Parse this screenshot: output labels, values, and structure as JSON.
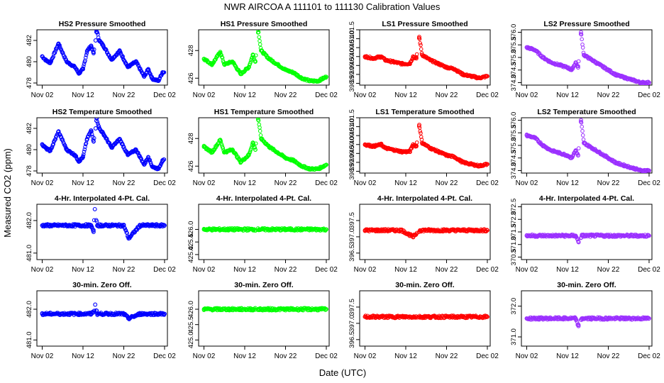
{
  "page_title": "NWR    AIRCOA A    111101 to 111130    Calibration Values",
  "ylabel": "Measured CO2 (ppm)",
  "xlabel": "Date (UTC)",
  "colors": {
    "HS2": "#0000ff",
    "HS1": "#00ff00",
    "LS1": "#ff0000",
    "LS2": "#9b30ff"
  },
  "x_ticks": [
    "Nov 02",
    "Nov 12",
    "Nov 22",
    "Dec 02"
  ],
  "chart_data": [
    {
      "type": "scatter",
      "title": "HS2 Pressure Smoothed",
      "series": "HS2",
      "ylim": [
        477.8,
        483.0
      ],
      "yticks": [
        "478",
        "480",
        "482"
      ],
      "values": [
        [
          0.0,
          480.5
        ],
        [
          1.0,
          480.1
        ],
        [
          2.0,
          479.9
        ],
        [
          4.0,
          481.7
        ],
        [
          6.0,
          480.0
        ],
        [
          8.0,
          479.5
        ],
        [
          9.0,
          478.9
        ],
        [
          10.0,
          479.3
        ],
        [
          11.0,
          481.0
        ],
        [
          12.0,
          481.5
        ],
        [
          12.6,
          480.8
        ],
        [
          13.1,
          482.0
        ],
        [
          13.3,
          483.0
        ],
        [
          14.0,
          482.0
        ],
        [
          15.0,
          481.5
        ],
        [
          17.0,
          480.2
        ],
        [
          19.0,
          481.0
        ],
        [
          21.0,
          479.5
        ],
        [
          23.0,
          480.0
        ],
        [
          25.0,
          478.6
        ],
        [
          26.0,
          479.3
        ],
        [
          27.0,
          478.4
        ],
        [
          28.5,
          478.2
        ],
        [
          29.5,
          479.0
        ]
      ]
    },
    {
      "type": "scatter",
      "title": "HS1 Pressure Smoothed",
      "series": "HS1",
      "ylim": [
        425.5,
        429.5
      ],
      "yticks": [
        "426",
        "428"
      ],
      "values": [
        [
          0.0,
          427.4
        ],
        [
          2.0,
          427.0
        ],
        [
          4.0,
          427.9
        ],
        [
          5.0,
          427.0
        ],
        [
          7.0,
          427.2
        ],
        [
          9.0,
          426.3
        ],
        [
          11.0,
          426.8
        ],
        [
          12.0,
          427.7
        ],
        [
          12.6,
          427.2
        ],
        [
          13.3,
          429.5
        ],
        [
          14.0,
          428.0
        ],
        [
          16.0,
          427.4
        ],
        [
          18.0,
          427.0
        ],
        [
          20.0,
          426.6
        ],
        [
          22.0,
          426.4
        ],
        [
          24.0,
          426.0
        ],
        [
          26.0,
          425.8
        ],
        [
          28.0,
          425.8
        ],
        [
          30.0,
          426.1
        ]
      ]
    },
    {
      "type": "scatter",
      "title": "LS1 Pressure Smoothed",
      "series": "LS1",
      "ylim": [
        398.4,
        401.5
      ],
      "yticks": [
        "398.5",
        "399.0",
        "399.5",
        "400.0",
        "400.5",
        "401.0",
        "401.5"
      ],
      "values": [
        [
          0.0,
          400.0
        ],
        [
          2.0,
          399.9
        ],
        [
          4.0,
          400.0
        ],
        [
          5.0,
          399.8
        ],
        [
          7.0,
          399.7
        ],
        [
          9.0,
          399.6
        ],
        [
          11.0,
          399.6
        ],
        [
          11.8,
          400.0
        ],
        [
          12.6,
          399.9
        ],
        [
          13.3,
          401.1
        ],
        [
          14.0,
          400.1
        ],
        [
          16.0,
          399.8
        ],
        [
          18.0,
          399.6
        ],
        [
          20.0,
          399.4
        ],
        [
          22.0,
          399.3
        ],
        [
          24.0,
          399.0
        ],
        [
          26.0,
          398.9
        ],
        [
          28.0,
          398.8
        ],
        [
          30.0,
          398.9
        ]
      ]
    },
    {
      "type": "scatter",
      "title": "LS2 Pressure Smoothed",
      "series": "LS2",
      "ylim": [
        373.9,
        376.1
      ],
      "yticks": [
        "374.0",
        "374.5",
        "375.0",
        "375.5",
        "376.0"
      ],
      "values": [
        [
          0.0,
          375.4
        ],
        [
          2.0,
          375.3
        ],
        [
          4.0,
          375.0
        ],
        [
          6.0,
          374.8
        ],
        [
          8.0,
          374.7
        ],
        [
          10.0,
          374.6
        ],
        [
          11.0,
          374.5
        ],
        [
          12.0,
          374.8
        ],
        [
          12.6,
          374.6
        ],
        [
          13.3,
          376.0
        ],
        [
          14.0,
          375.1
        ],
        [
          16.0,
          374.9
        ],
        [
          18.0,
          374.7
        ],
        [
          20.0,
          374.5
        ],
        [
          22.0,
          374.3
        ],
        [
          24.0,
          374.2
        ],
        [
          26.0,
          374.1
        ],
        [
          28.0,
          374.0
        ],
        [
          30.0,
          374.0
        ]
      ]
    },
    {
      "type": "scatter",
      "title": "HS2 Temperature Smoothed",
      "series": "HS2",
      "ylim": [
        477.8,
        483.0
      ],
      "yticks": [
        "478",
        "480",
        "482"
      ],
      "values": [
        [
          0.0,
          480.5
        ],
        [
          1.0,
          480.1
        ],
        [
          2.0,
          479.9
        ],
        [
          4.0,
          481.7
        ],
        [
          6.0,
          480.0
        ],
        [
          8.0,
          479.5
        ],
        [
          9.0,
          478.9
        ],
        [
          10.0,
          479.3
        ],
        [
          11.0,
          481.0
        ],
        [
          12.0,
          481.8
        ],
        [
          12.6,
          480.8
        ],
        [
          13.1,
          482.0
        ],
        [
          13.3,
          483.0
        ],
        [
          14.0,
          482.0
        ],
        [
          15.0,
          481.5
        ],
        [
          17.0,
          480.2
        ],
        [
          19.0,
          481.0
        ],
        [
          21.0,
          479.5
        ],
        [
          23.0,
          480.0
        ],
        [
          25.0,
          478.6
        ],
        [
          26.0,
          479.3
        ],
        [
          27.0,
          478.4
        ],
        [
          28.5,
          478.2
        ],
        [
          29.5,
          479.0
        ]
      ]
    },
    {
      "type": "scatter",
      "title": "HS1 Temperature Smoothed",
      "series": "HS1",
      "ylim": [
        425.5,
        429.5
      ],
      "yticks": [
        "426",
        "428"
      ],
      "values": [
        [
          0.0,
          427.4
        ],
        [
          2.0,
          427.0
        ],
        [
          4.0,
          427.9
        ],
        [
          5.0,
          427.0
        ],
        [
          7.0,
          427.2
        ],
        [
          9.0,
          426.3
        ],
        [
          11.0,
          426.8
        ],
        [
          12.0,
          427.7
        ],
        [
          12.6,
          427.2
        ],
        [
          13.3,
          429.5
        ],
        [
          14.0,
          428.0
        ],
        [
          16.0,
          427.4
        ],
        [
          18.0,
          427.0
        ],
        [
          20.0,
          426.6
        ],
        [
          22.0,
          426.4
        ],
        [
          24.0,
          426.0
        ],
        [
          26.0,
          425.8
        ],
        [
          28.0,
          425.8
        ],
        [
          30.0,
          426.1
        ]
      ]
    },
    {
      "type": "scatter",
      "title": "LS1 Temperature Smoothed",
      "series": "LS1",
      "ylim": [
        398.4,
        401.5
      ],
      "yticks": [
        "398.5",
        "399.0",
        "399.5",
        "400.0",
        "400.5",
        "401.0",
        "401.5"
      ],
      "values": [
        [
          0.0,
          400.0
        ],
        [
          2.0,
          399.9
        ],
        [
          4.0,
          400.0
        ],
        [
          5.0,
          399.8
        ],
        [
          7.0,
          399.7
        ],
        [
          9.0,
          399.6
        ],
        [
          11.0,
          399.6
        ],
        [
          11.8,
          400.0
        ],
        [
          12.6,
          399.9
        ],
        [
          13.3,
          401.1
        ],
        [
          14.0,
          400.1
        ],
        [
          16.0,
          399.8
        ],
        [
          18.0,
          399.6
        ],
        [
          20.0,
          399.4
        ],
        [
          22.0,
          399.3
        ],
        [
          24.0,
          399.0
        ],
        [
          26.0,
          398.9
        ],
        [
          28.0,
          398.8
        ],
        [
          30.0,
          398.9
        ]
      ]
    },
    {
      "type": "scatter",
      "title": "LS2 Temperature Smoothed",
      "series": "LS2",
      "ylim": [
        373.9,
        376.1
      ],
      "yticks": [
        "374.0",
        "374.5",
        "375.0",
        "375.5",
        "376.0"
      ],
      "values": [
        [
          0.0,
          375.4
        ],
        [
          2.0,
          375.3
        ],
        [
          4.0,
          375.0
        ],
        [
          6.0,
          374.8
        ],
        [
          8.0,
          374.7
        ],
        [
          10.0,
          374.6
        ],
        [
          11.0,
          374.5
        ],
        [
          12.0,
          374.8
        ],
        [
          12.6,
          374.6
        ],
        [
          13.3,
          376.0
        ],
        [
          14.0,
          375.1
        ],
        [
          16.0,
          374.9
        ],
        [
          18.0,
          374.7
        ],
        [
          20.0,
          374.5
        ],
        [
          22.0,
          374.3
        ],
        [
          24.0,
          374.2
        ],
        [
          26.0,
          374.1
        ],
        [
          28.0,
          374.0
        ],
        [
          30.0,
          374.0
        ]
      ]
    },
    {
      "type": "scatter",
      "title": "4-Hr. Interpolated 4-Pt. Cal.",
      "series": "HS2",
      "ylim": [
        480.8,
        482.5
      ],
      "yticks": [
        "481.0",
        "482.0"
      ],
      "values": [
        [
          0.0,
          481.85
        ],
        [
          3.0,
          481.85
        ],
        [
          6.0,
          481.85
        ],
        [
          9.0,
          481.85
        ],
        [
          12.0,
          481.85
        ],
        [
          12.6,
          481.65
        ],
        [
          12.9,
          482.35
        ],
        [
          13.5,
          481.85
        ],
        [
          16.0,
          481.85
        ],
        [
          20.0,
          481.85
        ],
        [
          21.2,
          481.45
        ],
        [
          24.0,
          481.85
        ],
        [
          27.0,
          481.85
        ],
        [
          30.0,
          481.85
        ]
      ]
    },
    {
      "type": "scatter",
      "title": "4-Hr. Interpolated 4-Pt. Cal.",
      "series": "HS1",
      "ylim": [
        424.8,
        427.0
      ],
      "yticks": [
        "425.0",
        "425.5",
        "426.0"
      ],
      "values": [
        [
          0.0,
          426.0
        ],
        [
          3.0,
          426.0
        ],
        [
          6.0,
          426.0
        ],
        [
          9.0,
          426.0
        ],
        [
          12.0,
          426.0
        ],
        [
          13.5,
          426.0
        ],
        [
          16.0,
          426.0
        ],
        [
          20.0,
          426.0
        ],
        [
          24.0,
          426.0
        ],
        [
          27.0,
          426.0
        ],
        [
          30.0,
          426.0
        ]
      ]
    },
    {
      "type": "scatter",
      "title": "4-Hr. Interpolated 4-Pt. Cal.",
      "series": "LS1",
      "ylim": [
        396.3,
        398.0
      ],
      "yticks": [
        "396.5",
        "397.0",
        "397.5"
      ],
      "values": [
        [
          0.0,
          397.2
        ],
        [
          3.0,
          397.2
        ],
        [
          6.0,
          397.2
        ],
        [
          9.0,
          397.2
        ],
        [
          11.8,
          397.0
        ],
        [
          13.5,
          397.2
        ],
        [
          16.0,
          397.2
        ],
        [
          20.0,
          397.2
        ],
        [
          24.0,
          397.2
        ],
        [
          27.0,
          397.2
        ],
        [
          30.0,
          397.2
        ]
      ]
    },
    {
      "type": "scatter",
      "title": "4-Hr. Interpolated 4-Pt. Cal.",
      "series": "LS2",
      "ylim": [
        370.4,
        372.6
      ],
      "yticks": [
        "370.5",
        "371.0",
        "371.5",
        "372.0",
        "372.5"
      ],
      "values": [
        [
          0.0,
          371.35
        ],
        [
          3.0,
          371.35
        ],
        [
          6.0,
          371.35
        ],
        [
          9.0,
          371.35
        ],
        [
          12.0,
          371.35
        ],
        [
          12.7,
          371.1
        ],
        [
          13.5,
          371.35
        ],
        [
          16.0,
          371.35
        ],
        [
          20.0,
          371.35
        ],
        [
          24.0,
          371.35
        ],
        [
          27.0,
          371.35
        ],
        [
          30.0,
          371.35
        ]
      ]
    },
    {
      "type": "scatter",
      "title": "30-min. Zero Off.",
      "series": "HS2",
      "ylim": [
        480.8,
        482.6
      ],
      "yticks": [
        "481.0",
        "482.0"
      ],
      "values": [
        [
          0.0,
          481.85
        ],
        [
          3.0,
          481.85
        ],
        [
          6.0,
          481.85
        ],
        [
          9.0,
          481.85
        ],
        [
          12.0,
          481.85
        ],
        [
          12.8,
          481.95
        ],
        [
          13.0,
          482.15
        ],
        [
          13.5,
          481.85
        ],
        [
          16.0,
          481.85
        ],
        [
          20.0,
          481.85
        ],
        [
          21.2,
          481.7
        ],
        [
          24.0,
          481.85
        ],
        [
          27.0,
          481.85
        ],
        [
          30.0,
          481.85
        ]
      ]
    },
    {
      "type": "scatter",
      "title": "30-min. Zero Off.",
      "series": "HS1",
      "ylim": [
        424.8,
        426.6
      ],
      "yticks": [
        "425.0",
        "425.5",
        "426.0"
      ],
      "values": [
        [
          0.0,
          426.0
        ],
        [
          3.0,
          426.0
        ],
        [
          6.0,
          426.0
        ],
        [
          9.0,
          426.0
        ],
        [
          12.0,
          426.0
        ],
        [
          13.5,
          426.0
        ],
        [
          16.0,
          426.0
        ],
        [
          20.0,
          426.0
        ],
        [
          24.0,
          426.0
        ],
        [
          27.0,
          426.0
        ],
        [
          30.0,
          426.0
        ]
      ]
    },
    {
      "type": "scatter",
      "title": "30-min. Zero Off.",
      "series": "LS1",
      "ylim": [
        396.3,
        398.0
      ],
      "yticks": [
        "396.5",
        "397.0",
        "397.5"
      ],
      "values": [
        [
          0.0,
          397.2
        ],
        [
          3.0,
          397.2
        ],
        [
          6.0,
          397.2
        ],
        [
          9.0,
          397.2
        ],
        [
          12.0,
          397.2
        ],
        [
          13.5,
          397.2
        ],
        [
          16.0,
          397.2
        ],
        [
          20.0,
          397.2
        ],
        [
          24.0,
          397.2
        ],
        [
          27.0,
          397.2
        ],
        [
          30.0,
          397.2
        ]
      ]
    },
    {
      "type": "scatter",
      "title": "30-min. Zero Off.",
      "series": "LS2",
      "ylim": [
        370.7,
        372.5
      ],
      "yticks": [
        "371.0",
        "372.0"
      ],
      "values": [
        [
          0.0,
          371.6
        ],
        [
          3.0,
          371.6
        ],
        [
          6.0,
          371.6
        ],
        [
          9.0,
          371.6
        ],
        [
          12.0,
          371.6
        ],
        [
          12.7,
          371.35
        ],
        [
          13.5,
          371.6
        ],
        [
          16.0,
          371.6
        ],
        [
          20.0,
          371.6
        ],
        [
          24.0,
          371.6
        ],
        [
          27.0,
          371.6
        ],
        [
          30.0,
          371.6
        ]
      ]
    }
  ]
}
